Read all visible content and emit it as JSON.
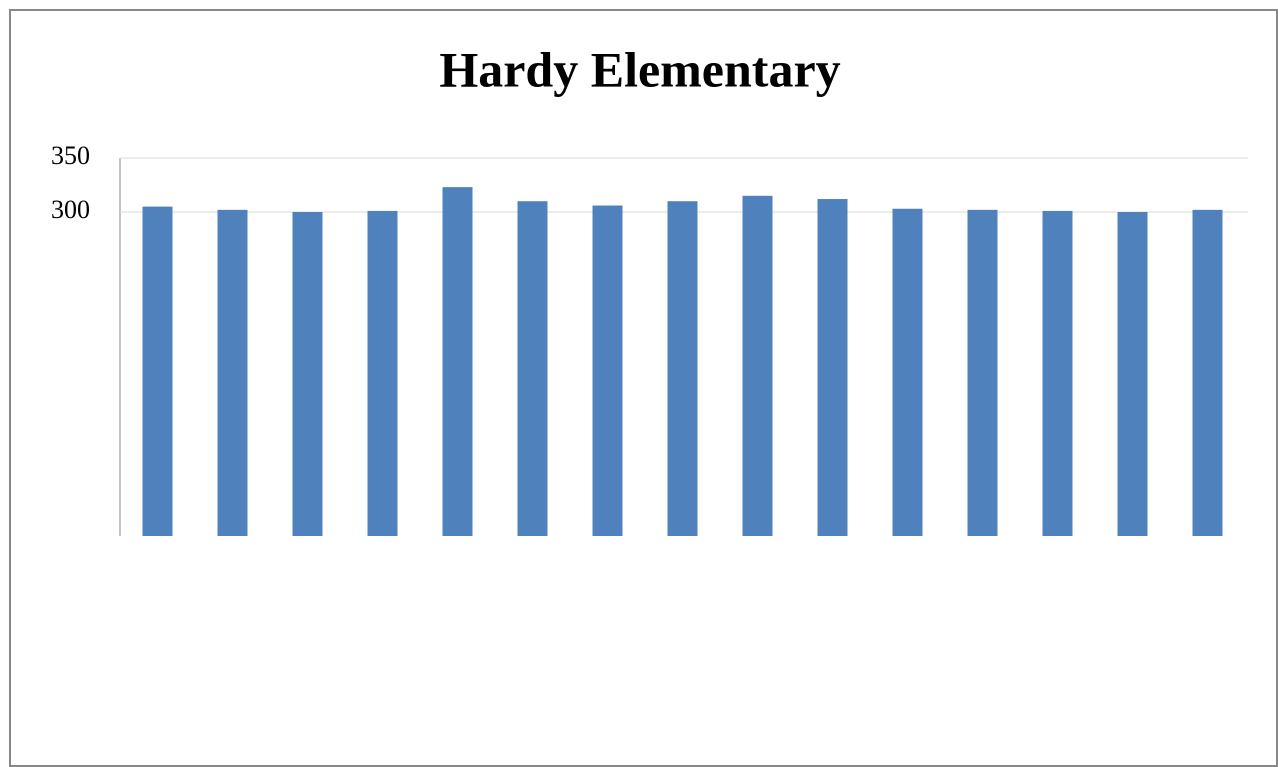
{
  "chart_data": {
    "type": "bar",
    "title": "Hardy Elementary",
    "categories": [
      null,
      null,
      null,
      null,
      null,
      null,
      null,
      null,
      null,
      null,
      null,
      null,
      null,
      null,
      null
    ],
    "values": [
      305,
      302,
      300,
      301,
      323,
      310,
      306,
      310,
      315,
      312,
      303,
      302,
      301,
      300,
      302
    ],
    "color": "#4f81bd",
    "ylim": [
      0,
      350
    ],
    "yticks": [
      300,
      350
    ],
    "grid": true
  }
}
